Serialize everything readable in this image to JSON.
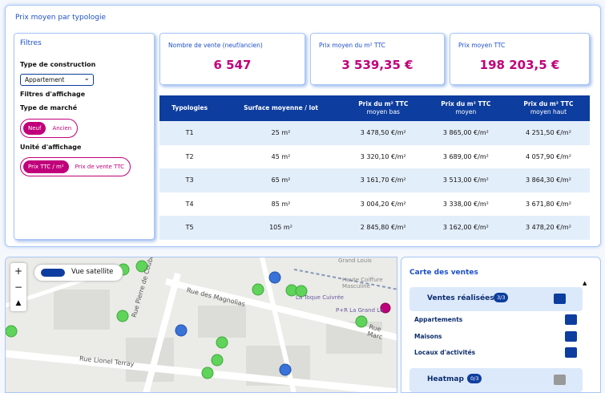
{
  "panel": {
    "title": "Prix moyen par typologie"
  },
  "filters": {
    "title": "Filtres",
    "construction_label": "Type de construction",
    "construction_value": "Appartement",
    "display_filters": "Filtres d'affichage",
    "market_label": "Type de marché",
    "market_options": [
      "Neuf",
      "Ancien"
    ],
    "unit_label": "Unité d'affichage",
    "unit_options": [
      "Prix TTC / m²",
      "Prix de vente TTC"
    ]
  },
  "kpis": [
    {
      "label": "Nombre de vente (neuf/ancien)",
      "value": "6 547"
    },
    {
      "label": "Prix moyen du m² TTC",
      "value": "3 539,35 €"
    },
    {
      "label": "Prix moyen TTC",
      "value": "198 203,5 €"
    }
  ],
  "table": {
    "headers": [
      [
        "Typologies"
      ],
      [
        "Surface moyenne / lot"
      ],
      [
        "Prix du m² TTC",
        "moyen bas"
      ],
      [
        "Prix du m² TTC",
        "moyen"
      ],
      [
        "Prix du m² TTC",
        "moyen haut"
      ]
    ],
    "rows": [
      [
        "T1",
        "25 m²",
        "3 478,50 €/m²",
        "3 865,00 €/m²",
        "4 251,50 €/m²"
      ],
      [
        "T2",
        "45 m²",
        "3 320,10 €/m²",
        "3 689,00 €/m²",
        "4 057,90 €/m²"
      ],
      [
        "T3",
        "65 m²",
        "3 161,70 €/m²",
        "3 513,00 €/m²",
        "3 864,30 €/m²"
      ],
      [
        "T4",
        "85 m²",
        "3 004,20 €/m²",
        "3 338,00 €/m²",
        "3 671,80 €/m²"
      ],
      [
        "T5",
        "105 m²",
        "2 845,80 €/m²",
        "3 162,00 €/m²",
        "3 478,20 €/m²"
      ]
    ]
  },
  "map": {
    "toggle": "Vue satellite",
    "zoom_in": "+",
    "zoom_out": "−",
    "streets": [
      "Rue des Magnolias",
      "Rue Pierre de Coubertin",
      "Rue Lionel Terray",
      "Rue Marc"
    ],
    "places": [
      "La Toque Cuivrée",
      "P+R La Grand Lo",
      "Haute Coiffure Masculine",
      "Grand Louis"
    ]
  },
  "sidebar": {
    "title": "Carte des ventes",
    "sections": [
      {
        "label": "Ventes réalisées",
        "badge": "3/3",
        "items": [
          "Appartements",
          "Maisons",
          "Locaux d'activités"
        ]
      },
      {
        "label": "Heatmap",
        "badge": "0/3"
      }
    ]
  }
}
